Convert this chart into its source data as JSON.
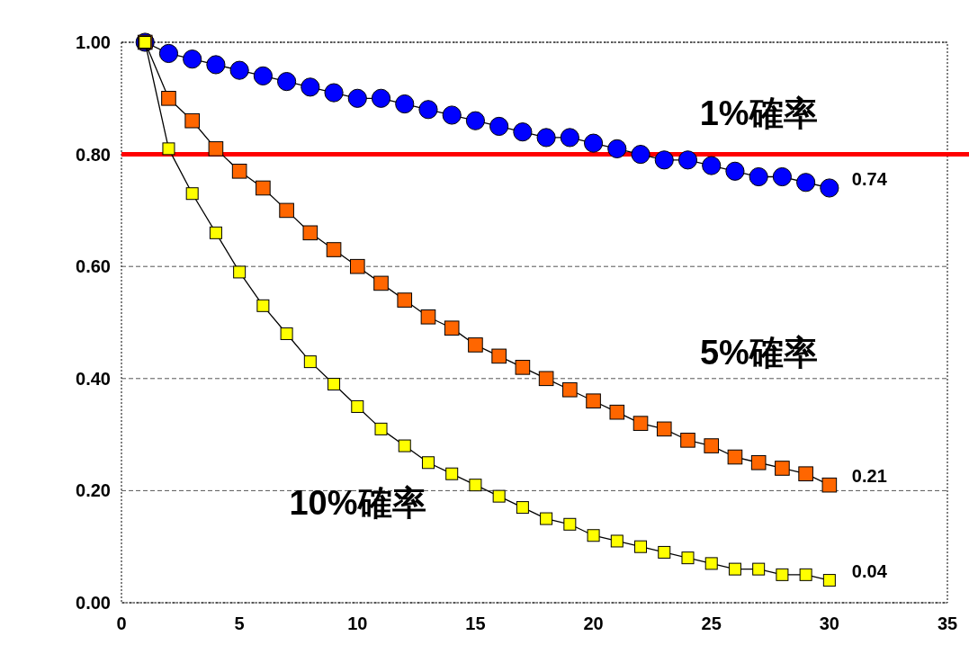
{
  "chart_data": {
    "type": "line",
    "x": [
      1,
      2,
      3,
      4,
      5,
      6,
      7,
      8,
      9,
      10,
      11,
      12,
      13,
      14,
      15,
      16,
      17,
      18,
      19,
      20,
      21,
      22,
      23,
      24,
      25,
      26,
      27,
      28,
      29,
      30
    ],
    "series": [
      {
        "name": "1%確率",
        "color": "#0000ff",
        "marker": "circle",
        "values": [
          1.0,
          0.98,
          0.97,
          0.96,
          0.95,
          0.94,
          0.93,
          0.92,
          0.91,
          0.9,
          0.9,
          0.89,
          0.88,
          0.87,
          0.86,
          0.85,
          0.84,
          0.83,
          0.83,
          0.82,
          0.81,
          0.8,
          0.79,
          0.79,
          0.78,
          0.77,
          0.76,
          0.76,
          0.75,
          0.74
        ],
        "value_labels": [
          null,
          null,
          null,
          null,
          null,
          null,
          null,
          null,
          null,
          null,
          null,
          null,
          null,
          null,
          null,
          null,
          null,
          null,
          null,
          null,
          null,
          null,
          null,
          null,
          null,
          null,
          null,
          null,
          null,
          "0.74"
        ]
      },
      {
        "name": "5%確率",
        "color": "#ff6600",
        "marker": "square",
        "values": [
          1.0,
          0.9,
          0.86,
          0.81,
          0.77,
          0.74,
          0.7,
          0.66,
          0.63,
          0.6,
          0.57,
          0.54,
          0.51,
          0.49,
          0.46,
          0.44,
          0.42,
          0.4,
          0.38,
          0.36,
          0.34,
          0.32,
          0.31,
          0.29,
          0.28,
          0.26,
          0.25,
          0.24,
          0.23,
          0.21
        ],
        "value_labels": [
          null,
          null,
          null,
          null,
          null,
          null,
          null,
          null,
          null,
          null,
          null,
          null,
          null,
          null,
          null,
          null,
          null,
          null,
          null,
          null,
          null,
          null,
          null,
          null,
          null,
          null,
          null,
          null,
          null,
          "0.21"
        ]
      },
      {
        "name": "10%確率",
        "color": "#ffff00",
        "marker": "square",
        "values": [
          1.0,
          0.81,
          0.73,
          0.66,
          0.59,
          0.53,
          0.48,
          0.43,
          0.39,
          0.35,
          0.31,
          0.28,
          0.25,
          0.23,
          0.21,
          0.19,
          0.17,
          0.15,
          0.14,
          0.12,
          0.11,
          0.1,
          0.09,
          0.08,
          0.07,
          0.06,
          0.06,
          0.05,
          0.05,
          0.04
        ],
        "value_labels": [
          null,
          null,
          null,
          null,
          null,
          null,
          null,
          null,
          null,
          null,
          null,
          null,
          null,
          null,
          null,
          null,
          null,
          null,
          null,
          null,
          null,
          null,
          null,
          null,
          null,
          null,
          null,
          null,
          null,
          "0.04"
        ]
      }
    ],
    "xlim": [
      0,
      35
    ],
    "xticks": [
      0,
      5,
      10,
      15,
      20,
      25,
      30,
      35
    ],
    "ylim": [
      0,
      1
    ],
    "yticks": [
      {
        "value": 0,
        "label": "0.00"
      },
      {
        "value": 0.2,
        "label": "0.20"
      },
      {
        "value": 0.4,
        "label": "0.40"
      },
      {
        "value": 0.6,
        "label": "0.60"
      },
      {
        "value": 0.8,
        "label": "0.80"
      },
      {
        "value": 1,
        "label": "1.00"
      }
    ],
    "grid": "y",
    "legend": false,
    "ref_lines": [
      {
        "axis": "y",
        "value": 0.8,
        "color": "#ff0000",
        "line_style": "solid"
      }
    ]
  }
}
